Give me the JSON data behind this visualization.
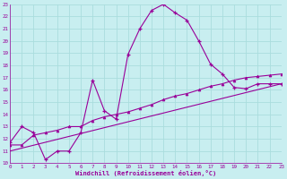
{
  "xlabel": "Windchill (Refroidissement éolien,°C)",
  "bg_color": "#c8eef0",
  "line_color": "#990099",
  "grid_color": "#aadddd",
  "xmin": 0,
  "xmax": 23,
  "ymin": 10,
  "ymax": 23,
  "line1_x": [
    0,
    1,
    2,
    3,
    4,
    5,
    6,
    7,
    8,
    9,
    10,
    11,
    12,
    13,
    14,
    15,
    16,
    17,
    18,
    19,
    20,
    21,
    22,
    23
  ],
  "line1_y": [
    11.7,
    13.0,
    12.5,
    10.3,
    11.0,
    11.0,
    12.5,
    16.8,
    14.3,
    13.6,
    18.9,
    21.0,
    22.5,
    23.0,
    22.3,
    21.7,
    20.0,
    18.1,
    17.3,
    16.2,
    16.1,
    16.5,
    16.5,
    16.5
  ],
  "line2_x": [
    0,
    1,
    2,
    3,
    4,
    5,
    6,
    7,
    8,
    9,
    10,
    11,
    12,
    13,
    14,
    15,
    16,
    17,
    18,
    19,
    20,
    21,
    22,
    23
  ],
  "line2_y": [
    11.5,
    11.5,
    12.3,
    12.5,
    12.7,
    13.0,
    13.0,
    13.5,
    13.8,
    14.0,
    14.2,
    14.5,
    14.8,
    15.2,
    15.5,
    15.7,
    16.0,
    16.3,
    16.5,
    16.8,
    17.0,
    17.1,
    17.2,
    17.3
  ],
  "line3_x": [
    0,
    23
  ],
  "line3_y": [
    11.0,
    16.5
  ]
}
